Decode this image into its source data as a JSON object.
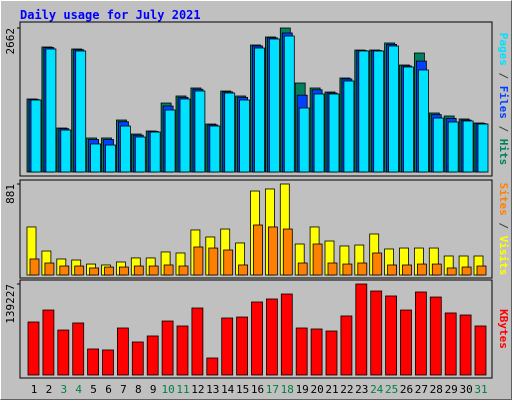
{
  "title": "Daily usage for July 2021",
  "categories": [
    "1",
    "2",
    "3",
    "4",
    "5",
    "6",
    "7",
    "8",
    "9",
    "10",
    "11",
    "12",
    "13",
    "14",
    "15",
    "16",
    "17",
    "18",
    "19",
    "20",
    "21",
    "22",
    "23",
    "24",
    "25",
    "26",
    "27",
    "28",
    "29",
    "30",
    "31"
  ],
  "category_colors": [
    "#000000",
    "#000000",
    "#008040",
    "#008040",
    "#000000",
    "#000000",
    "#000000",
    "#000000",
    "#000000",
    "#008040",
    "#008040",
    "#000000",
    "#000000",
    "#000000",
    "#000000",
    "#000000",
    "#008040",
    "#008040",
    "#000000",
    "#000000",
    "#000000",
    "#000000",
    "#000000",
    "#008040",
    "#008040",
    "#000000",
    "#000000",
    "#000000",
    "#000000",
    "#000000",
    "#008040"
  ],
  "chart_data": [
    {
      "type": "bar",
      "ylim": [
        0,
        2662
      ],
      "yticks": [
        2662
      ],
      "series": [
        {
          "name": "Hits",
          "color": "#00805c",
          "values": [
            1350,
            2311,
            813,
            2274,
            629,
            629,
            961,
            702,
            758,
            1275,
            1405,
            1553,
            887,
            1497,
            1405,
            2348,
            2496,
            2662,
            1645,
            1553,
            1479,
            1738,
            2255,
            2255,
            2385,
            1978,
            2200,
            1091,
            1035,
            980,
            906
          ]
        },
        {
          "name": "Files",
          "color": "#0040ff",
          "values": [
            1340,
            2300,
            800,
            2260,
            600,
            600,
            930,
            680,
            750,
            1220,
            1380,
            1530,
            870,
            1480,
            1380,
            2330,
            2480,
            2570,
            1420,
            1520,
            1460,
            1720,
            2245,
            2245,
            2360,
            1960,
            2050,
            1060,
            990,
            960,
            896
          ]
        },
        {
          "name": "Pages",
          "color": "#00e0ff",
          "values": [
            1331,
            2274,
            776,
            2237,
            518,
            499,
            850,
            647,
            739,
            1146,
            1350,
            1497,
            850,
            1460,
            1331,
            2292,
            2459,
            2514,
            1183,
            1442,
            1442,
            1682,
            2237,
            2237,
            2329,
            1941,
            1886,
            998,
            924,
            943,
            887
          ]
        }
      ]
    },
    {
      "type": "bar",
      "ylim": [
        0,
        881
      ],
      "yticks": [
        881
      ],
      "series": [
        {
          "name": "Visits",
          "color": "#ffff00",
          "values": [
            465,
            232,
            155,
            145,
            106,
            97,
            126,
            165,
            165,
            223,
            213,
            436,
            368,
            445,
            310,
            813,
            833,
            881,
            300,
            465,
            329,
            281,
            290,
            397,
            252,
            261,
            261,
            261,
            184,
            184,
            184
          ]
        },
        {
          "name": "Sites",
          "color": "#ff8000",
          "values": [
            155,
            116,
            87,
            87,
            68,
            77,
            77,
            87,
            87,
            97,
            87,
            271,
            261,
            242,
            97,
            484,
            465,
            445,
            116,
            300,
            116,
            106,
            116,
            213,
            97,
            97,
            106,
            106,
            68,
            77,
            87
          ]
        }
      ]
    },
    {
      "type": "bar",
      "ylim": [
        0,
        139227
      ],
      "yticks": [
        139227
      ],
      "series": [
        {
          "name": "KBytes",
          "color": "#ff0000",
          "values": [
            81100,
            99400,
            68800,
            79600,
            39800,
            38300,
            71900,
            50500,
            59700,
            82600,
            75000,
            102500,
            26000,
            87200,
            88700,
            111700,
            116300,
            123900,
            71900,
            70400,
            67300,
            90300,
            139227,
            128500,
            120900,
            99400,
            127000,
            119300,
            94900,
            91800,
            75000
          ]
        }
      ]
    }
  ]
}
